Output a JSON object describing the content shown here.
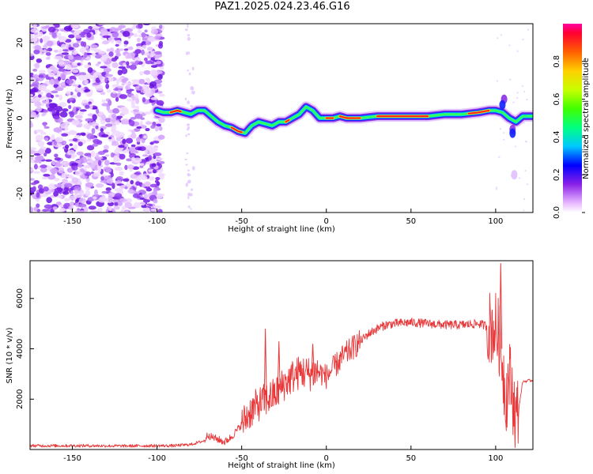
{
  "title": "PAZ1.2025.024.23.46.G16",
  "chart_data": [
    {
      "type": "heatmap",
      "xlabel": "Height of straight line (km)",
      "ylabel": "Frequency (Hz)",
      "xlim": [
        -175,
        122
      ],
      "ylim": [
        -25,
        25
      ],
      "xticks": [
        -150,
        -100,
        -50,
        0,
        50,
        100
      ],
      "yticks": [
        -20,
        -10,
        0,
        10,
        20
      ],
      "colorbar": {
        "label": "Normalized spectral amplitude",
        "range": [
          0,
          1
        ],
        "ticks": [
          "0.0",
          "0.2",
          "0.4",
          "0.6",
          "0.8"
        ]
      },
      "ridge": {
        "x": [
          -100,
          -96,
          -92,
          -88,
          -84,
          -80,
          -76,
          -72,
          -68,
          -64,
          -60,
          -56,
          -52,
          -48,
          -44,
          -40,
          -36,
          -32,
          -28,
          -24,
          -20,
          -16,
          -12,
          -8,
          -4,
          0,
          4,
          8,
          12,
          20,
          30,
          40,
          50,
          60,
          70,
          80,
          90,
          96,
          100,
          104,
          108,
          112,
          116,
          122
        ],
        "y": [
          2,
          1.5,
          1.5,
          2,
          1.5,
          1,
          2,
          2,
          0.5,
          -1,
          -2,
          -2.5,
          -3.5,
          -4,
          -2,
          -1,
          -1.5,
          -2,
          -1,
          -1,
          0,
          1,
          3,
          2,
          0,
          0,
          0,
          0.5,
          0,
          0,
          0.5,
          0.5,
          0.5,
          0.5,
          1,
          1,
          1.5,
          2,
          2,
          1.5,
          0,
          -1,
          0.5,
          0.5
        ]
      },
      "grid": false
    },
    {
      "type": "line",
      "xlabel": "Height of straight line (km)",
      "ylabel": "SNR (10 * v/v)",
      "xlim": [
        -175,
        122
      ],
      "ylim": [
        0,
        7500
      ],
      "xticks": [
        -150,
        -100,
        -50,
        0,
        50,
        100
      ],
      "yticks": [
        2000,
        4000,
        6000
      ],
      "color": "#e8383a",
      "series": [
        {
          "x": [
            -175,
            -160,
            -140,
            -120,
            -100,
            -90,
            -80,
            -72,
            -70,
            -68,
            -64,
            -60,
            -56,
            -50,
            -45,
            -40,
            -35,
            -30,
            -25,
            -20,
            -15,
            -10,
            -5,
            0,
            5,
            10,
            15,
            20,
            25,
            30,
            35,
            40,
            50,
            60,
            70,
            80,
            90,
            95,
            100,
            102,
            104,
            106,
            108,
            110,
            112,
            114,
            116,
            122
          ],
          "y": [
            150,
            150,
            150,
            140,
            150,
            150,
            200,
            350,
            600,
            500,
            400,
            300,
            500,
            1000,
            1500,
            1800,
            2000,
            2200,
            2600,
            2900,
            3100,
            3000,
            3100,
            2900,
            3300,
            3700,
            4000,
            4300,
            4600,
            4800,
            4950,
            5000,
            5050,
            5000,
            4950,
            4950,
            5000,
            4900,
            4800,
            4500,
            3500,
            2000,
            3000,
            2200,
            1200,
            1800,
            2700,
            2750
          ]
        }
      ],
      "annotations": [
        {
          "x": -36,
          "y": 4800
        },
        {
          "x": -28,
          "y": 4300
        },
        {
          "x": -8,
          "y": 4200
        },
        {
          "x": 103,
          "y": 7400
        }
      ],
      "grid": false
    }
  ]
}
